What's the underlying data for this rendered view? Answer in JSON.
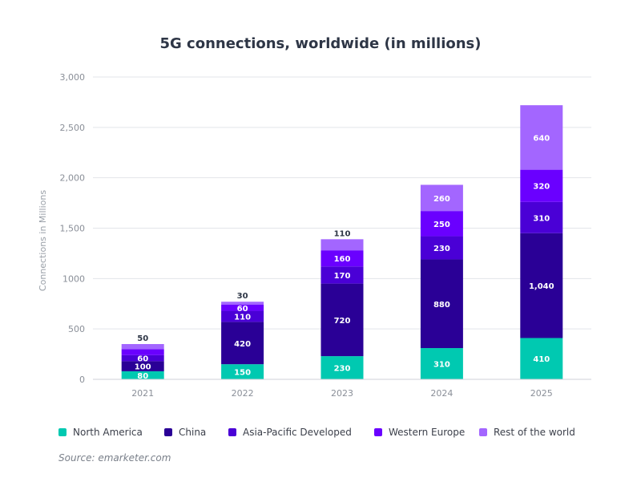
{
  "title": "5G connections, worldwide (in millions)",
  "source": "Source: emarketer.com",
  "chart_data": {
    "type": "bar",
    "stacked": true,
    "title": "5G connections, worldwide (in millions)",
    "xlabel": "",
    "ylabel": "Connections in Millions",
    "ylim": [
      0,
      3000
    ],
    "yticks": [
      0,
      500,
      1000,
      1500,
      2000,
      2500,
      3000
    ],
    "ytick_labels": [
      "0",
      "500",
      "1000",
      "1,500",
      "2,000",
      "2,500",
      "3,000"
    ],
    "categories": [
      "2021",
      "2022",
      "2023",
      "2024",
      "2025"
    ],
    "series": [
      {
        "name": "North America",
        "color": "#00c9b1",
        "values": [
          80,
          150,
          230,
          310,
          410
        ],
        "labels": [
          "80",
          "150",
          "230",
          "310",
          "410"
        ]
      },
      {
        "name": "China",
        "color": "#2a0096",
        "values": [
          100,
          420,
          720,
          880,
          1040
        ],
        "labels": [
          "100",
          "420",
          "720",
          "880",
          "1,040"
        ]
      },
      {
        "name": "Asia-Pacific Developed",
        "color": "#4a00d6",
        "values": [
          60,
          110,
          170,
          230,
          310
        ],
        "labels": [
          "60",
          "110",
          "170",
          "230",
          "310"
        ]
      },
      {
        "name": "Western Europe",
        "color": "#6a00ff",
        "values": [
          60,
          60,
          160,
          250,
          320
        ],
        "labels": [
          "",
          "60",
          "160",
          "250",
          "320"
        ]
      },
      {
        "name": "Rest of the world",
        "color": "#a366ff",
        "values": [
          50,
          30,
          110,
          260,
          640
        ],
        "labels": [
          "50",
          "30",
          "110",
          "260",
          "640"
        ]
      }
    ],
    "grid": true,
    "legend_position": "bottom"
  }
}
